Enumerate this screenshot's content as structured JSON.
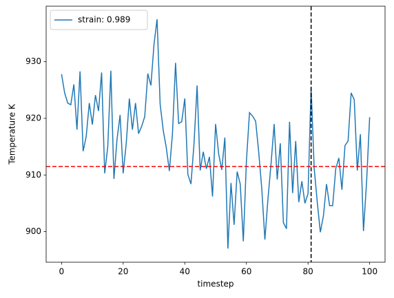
{
  "chart_data": {
    "type": "line",
    "xlabel": "timestep",
    "ylabel": "Temperature K",
    "x": [
      0,
      1,
      2,
      3,
      4,
      5,
      6,
      7,
      8,
      9,
      10,
      11,
      12,
      13,
      14,
      15,
      16,
      17,
      18,
      19,
      20,
      21,
      22,
      23,
      24,
      25,
      26,
      27,
      28,
      29,
      30,
      31,
      32,
      33,
      34,
      35,
      36,
      37,
      38,
      39,
      40,
      41,
      42,
      43,
      44,
      45,
      46,
      47,
      48,
      49,
      50,
      51,
      52,
      53,
      54,
      55,
      56,
      57,
      58,
      59,
      60,
      61,
      62,
      63,
      64,
      65,
      66,
      67,
      68,
      69,
      70,
      71,
      72,
      73,
      74,
      75,
      76,
      77,
      78,
      79,
      80,
      81,
      82,
      83,
      84,
      85,
      86,
      87,
      88,
      89,
      90,
      91,
      92,
      93,
      94,
      95,
      96,
      97,
      98,
      99,
      100
    ],
    "series": [
      {
        "name": "strain: 0.989",
        "color": "#1f77b4",
        "values": [
          927.8,
          924.5,
          922.7,
          922.4,
          926,
          918,
          928.3,
          914.2,
          916.8,
          922.7,
          918.9,
          924.1,
          921.3,
          928.1,
          910.3,
          915,
          928.4,
          909.3,
          916.3,
          920.6,
          910.3,
          915.6,
          923.5,
          918,
          922.7,
          917.3,
          918.6,
          920.3,
          927.9,
          925.8,
          933,
          937.5,
          922.5,
          917.9,
          914.8,
          910.7,
          917.3,
          929.8,
          919.1,
          919.4,
          923.5,
          910.1,
          908.4,
          915.6,
          925.8,
          910.8,
          914.1,
          911.1,
          913.2,
          906.2,
          919,
          913.7,
          910.9,
          916.6,
          897,
          908.6,
          901.2,
          910.6,
          908.4,
          898.3,
          912.4,
          921,
          920.4,
          919.5,
          914,
          907.5,
          898.6,
          905.8,
          912,
          919,
          909.2,
          915.6,
          901.6,
          900.5,
          919.4,
          906.8,
          916,
          905.2,
          908.9,
          905,
          906.7,
          925.5,
          911.2,
          905.2,
          899.9,
          902.8,
          908.4,
          904.6,
          904.6,
          911.1,
          913,
          907.4,
          915.2,
          916,
          924.5,
          923.3,
          910.8,
          917.2,
          900.1,
          908.7,
          920.2
        ]
      }
    ],
    "hline": {
      "value": 911.5,
      "color": "#ff0000"
    },
    "vline": {
      "value": 81,
      "color": "#000000"
    },
    "xlim": [
      -5,
      105
    ],
    "xticks": [
      0,
      20,
      40,
      60,
      80,
      100
    ],
    "ylim": [
      894.6,
      939.8
    ],
    "yticks": [
      900,
      910,
      920,
      930
    ],
    "legend": "upper left"
  }
}
